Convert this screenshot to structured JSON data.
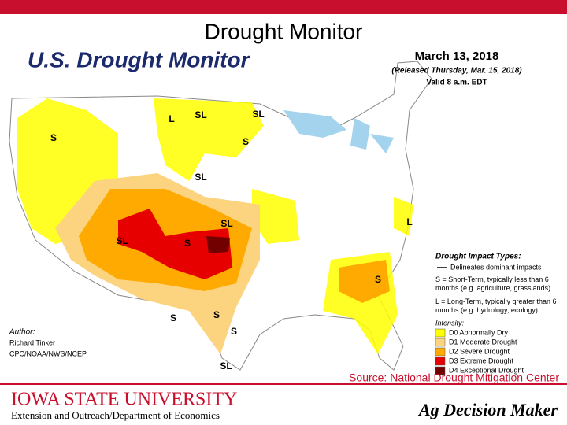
{
  "slide": {
    "title": "Drought Monitor",
    "map": {
      "title": "U.S. Drought Monitor",
      "date": "March 13, 2018",
      "released": "(Released Thursday, Mar. 15, 2018)",
      "valid": "Valid 8 a.m. EDT",
      "impact_labels": [
        "L",
        "SL",
        "SL",
        "S",
        "S",
        "SL",
        "SL",
        "S",
        "S",
        "SL",
        "S",
        "S",
        "S",
        "L",
        "SL"
      ],
      "legend": {
        "title": "Drought Impact Types:",
        "delineates": "Delineates dominant impacts",
        "short_term": "S = Short-Term, typically less than 6 months (e.g. agriculture, grasslands)",
        "long_term": "L = Long-Term, typically greater than 6 months (e.g. hydrology, ecology)",
        "intensity_title": "Intensity:",
        "intensity": [
          {
            "name": "D0 Abnormally Dry",
            "color": "#ffff00"
          },
          {
            "name": "D1 Moderate Drought",
            "color": "#fcd37f"
          },
          {
            "name": "D2 Severe Drought",
            "color": "#ffaa00"
          },
          {
            "name": "D3 Extreme Drought",
            "color": "#e60000"
          },
          {
            "name": "D4 Exceptional Drought",
            "color": "#730000"
          }
        ]
      },
      "author": {
        "label": "Author:",
        "name": "Richard Tinker",
        "org": "CPC/NOAA/NWS/NCEP"
      }
    },
    "source": "Source: National Drought Mitigation Center",
    "footer": {
      "university": "IOWA STATE UNIVERSITY",
      "department": "Extension and Outreach/Department of Economics",
      "brand": "Ag Decision Maker"
    }
  }
}
